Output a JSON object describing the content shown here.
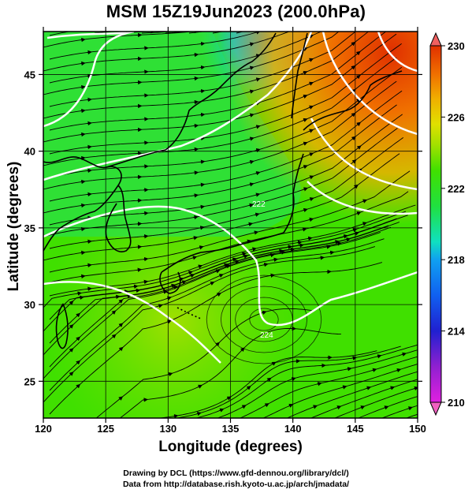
{
  "title": "MSM 15Z19Jun2023 (200.0hPa)",
  "xlabel": "Longitude (degrees)",
  "ylabel": "Latitude  (degrees)",
  "x_ticks": [
    "120",
    "125",
    "130",
    "135",
    "140",
    "145",
    "150"
  ],
  "y_ticks": [
    "25",
    "30",
    "35",
    "40",
    "45"
  ],
  "colorbar": {
    "ticks": [
      "230",
      "226",
      "222",
      "218",
      "214",
      "210"
    ],
    "min": 210,
    "max": 230,
    "colors": [
      "#e020e0",
      "#9020d0",
      "#2020d0",
      "#1060f0",
      "#10a0f0",
      "#10e0c0",
      "#20e040",
      "#40e000",
      "#a0e000",
      "#e0e000",
      "#f0b000",
      "#f07000",
      "#e03000"
    ]
  },
  "contour_labels": [
    "224",
    "222"
  ],
  "footer": {
    "credit": "Drawing by DCL (https://www.gfd-dennou.org/library/dcl/)",
    "source": "Data from http://database.rish.kyoto-u.ac.jp/arch/jmadata/"
  }
}
